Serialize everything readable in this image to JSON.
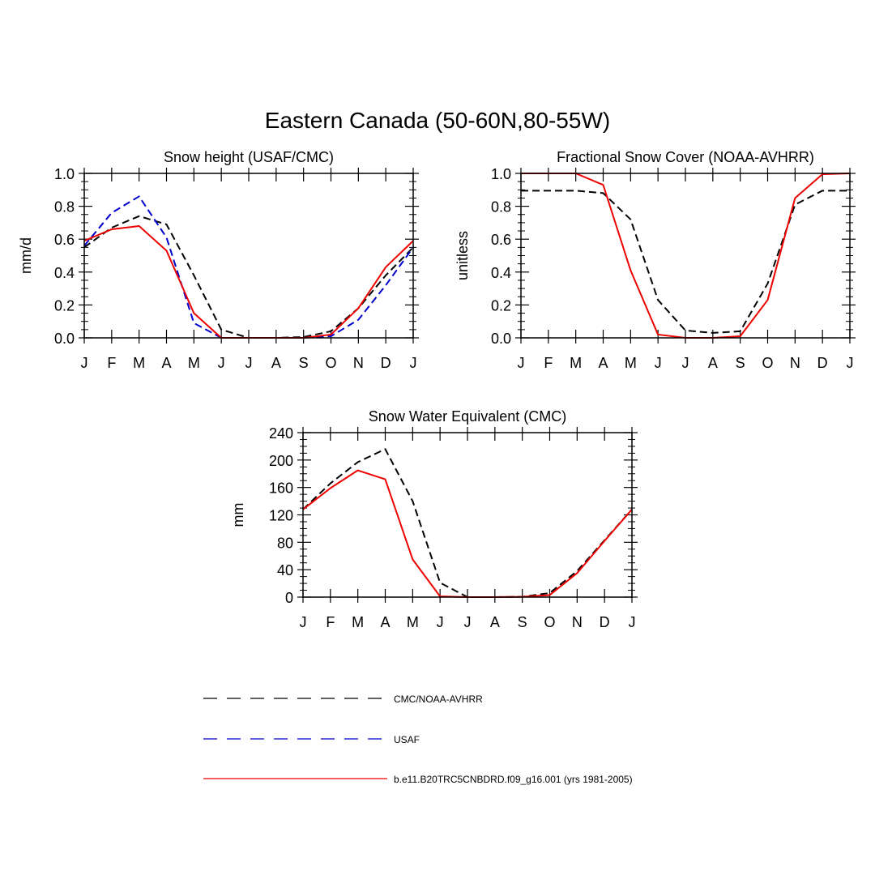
{
  "page_title": "Eastern Canada (50-60N,80-55W)",
  "colors": {
    "obs": "#000000",
    "usaf": "#0000cc",
    "model": "#ee0000"
  },
  "legend": [
    {
      "label": "CMC/NOAA-AVHRR",
      "color": "#000000",
      "dash": "dashed"
    },
    {
      "label": "USAF",
      "color": "#0000cc",
      "dash": "dashed"
    },
    {
      "label": "b.e11.B20TRC5CNBDRD.f09_g16.001 (yrs 1981-2005)",
      "color": "#ee0000",
      "dash": "solid"
    }
  ],
  "chart_data": [
    {
      "type": "line",
      "title": "Snow height (USAF/CMC)",
      "xlabel": "",
      "ylabel": "mm/d",
      "categories": [
        "J",
        "F",
        "M",
        "A",
        "M",
        "J",
        "J",
        "A",
        "S",
        "O",
        "N",
        "D",
        "J"
      ],
      "ylim": [
        0,
        1.0
      ],
      "yticks": [
        "0.0",
        "0.2",
        "0.4",
        "0.6",
        "0.8",
        "1.0"
      ],
      "series": [
        {
          "name": "CMC/NOAA-AVHRR",
          "color": "#000000",
          "dash": "dashed",
          "values": [
            0.55,
            0.67,
            0.74,
            0.69,
            0.38,
            0.05,
            0.0,
            0.0,
            0.005,
            0.04,
            0.18,
            0.38,
            0.55
          ]
        },
        {
          "name": "USAF",
          "color": "#0000cc",
          "dash": "dashed",
          "values": [
            0.56,
            0.76,
            0.86,
            0.61,
            0.09,
            0.0,
            0.0,
            0.0,
            0.0,
            0.01,
            0.11,
            0.32,
            0.55
          ]
        },
        {
          "name": "b.e11.B20TRC5CNBDRD.f09_g16.001 (yrs 1981-2005)",
          "color": "#ee0000",
          "dash": "solid",
          "values": [
            0.59,
            0.66,
            0.68,
            0.53,
            0.15,
            0.0,
            0.0,
            0.0,
            0.0,
            0.02,
            0.18,
            0.43,
            0.59
          ]
        }
      ]
    },
    {
      "type": "line",
      "title": "Fractional Snow Cover (NOAA-AVHRR)",
      "xlabel": "",
      "ylabel": "unitless",
      "categories": [
        "J",
        "F",
        "M",
        "A",
        "M",
        "J",
        "J",
        "A",
        "S",
        "O",
        "N",
        "D",
        "J"
      ],
      "ylim": [
        0,
        1.0
      ],
      "yticks": [
        "0.0",
        "0.2",
        "0.4",
        "0.6",
        "0.8",
        "1.0"
      ],
      "series": [
        {
          "name": "CMC/NOAA-AVHRR",
          "color": "#000000",
          "dash": "dashed",
          "values": [
            0.895,
            0.895,
            0.895,
            0.88,
            0.72,
            0.23,
            0.045,
            0.03,
            0.04,
            0.33,
            0.81,
            0.895,
            0.895
          ]
        },
        {
          "name": "b.e11.B20TRC5CNBDRD.f09_g16.001 (yrs 1981-2005)",
          "color": "#ee0000",
          "dash": "solid",
          "values": [
            1.0,
            1.0,
            1.0,
            0.93,
            0.41,
            0.02,
            0.0,
            0.0,
            0.01,
            0.23,
            0.85,
            0.995,
            1.0
          ]
        }
      ]
    },
    {
      "type": "line",
      "title": "Snow Water Equivalent (CMC)",
      "xlabel": "",
      "ylabel": "mm",
      "categories": [
        "J",
        "F",
        "M",
        "A",
        "M",
        "J",
        "J",
        "A",
        "S",
        "O",
        "N",
        "D",
        "J"
      ],
      "ylim": [
        0,
        240
      ],
      "yticks": [
        "0",
        "40",
        "80",
        "120",
        "160",
        "200",
        "240"
      ],
      "series": [
        {
          "name": "CMC/NOAA-AVHRR",
          "color": "#000000",
          "dash": "dashed",
          "values": [
            128,
            166,
            197,
            216,
            140,
            21,
            0,
            0,
            0.5,
            6,
            38,
            83,
            128
          ]
        },
        {
          "name": "b.e11.B20TRC5CNBDRD.f09_g16.001 (yrs 1981-2005)",
          "color": "#ee0000",
          "dash": "solid",
          "values": [
            128,
            159,
            185,
            172,
            55,
            1,
            0,
            0,
            0.5,
            3,
            35,
            82,
            128
          ]
        }
      ]
    }
  ]
}
